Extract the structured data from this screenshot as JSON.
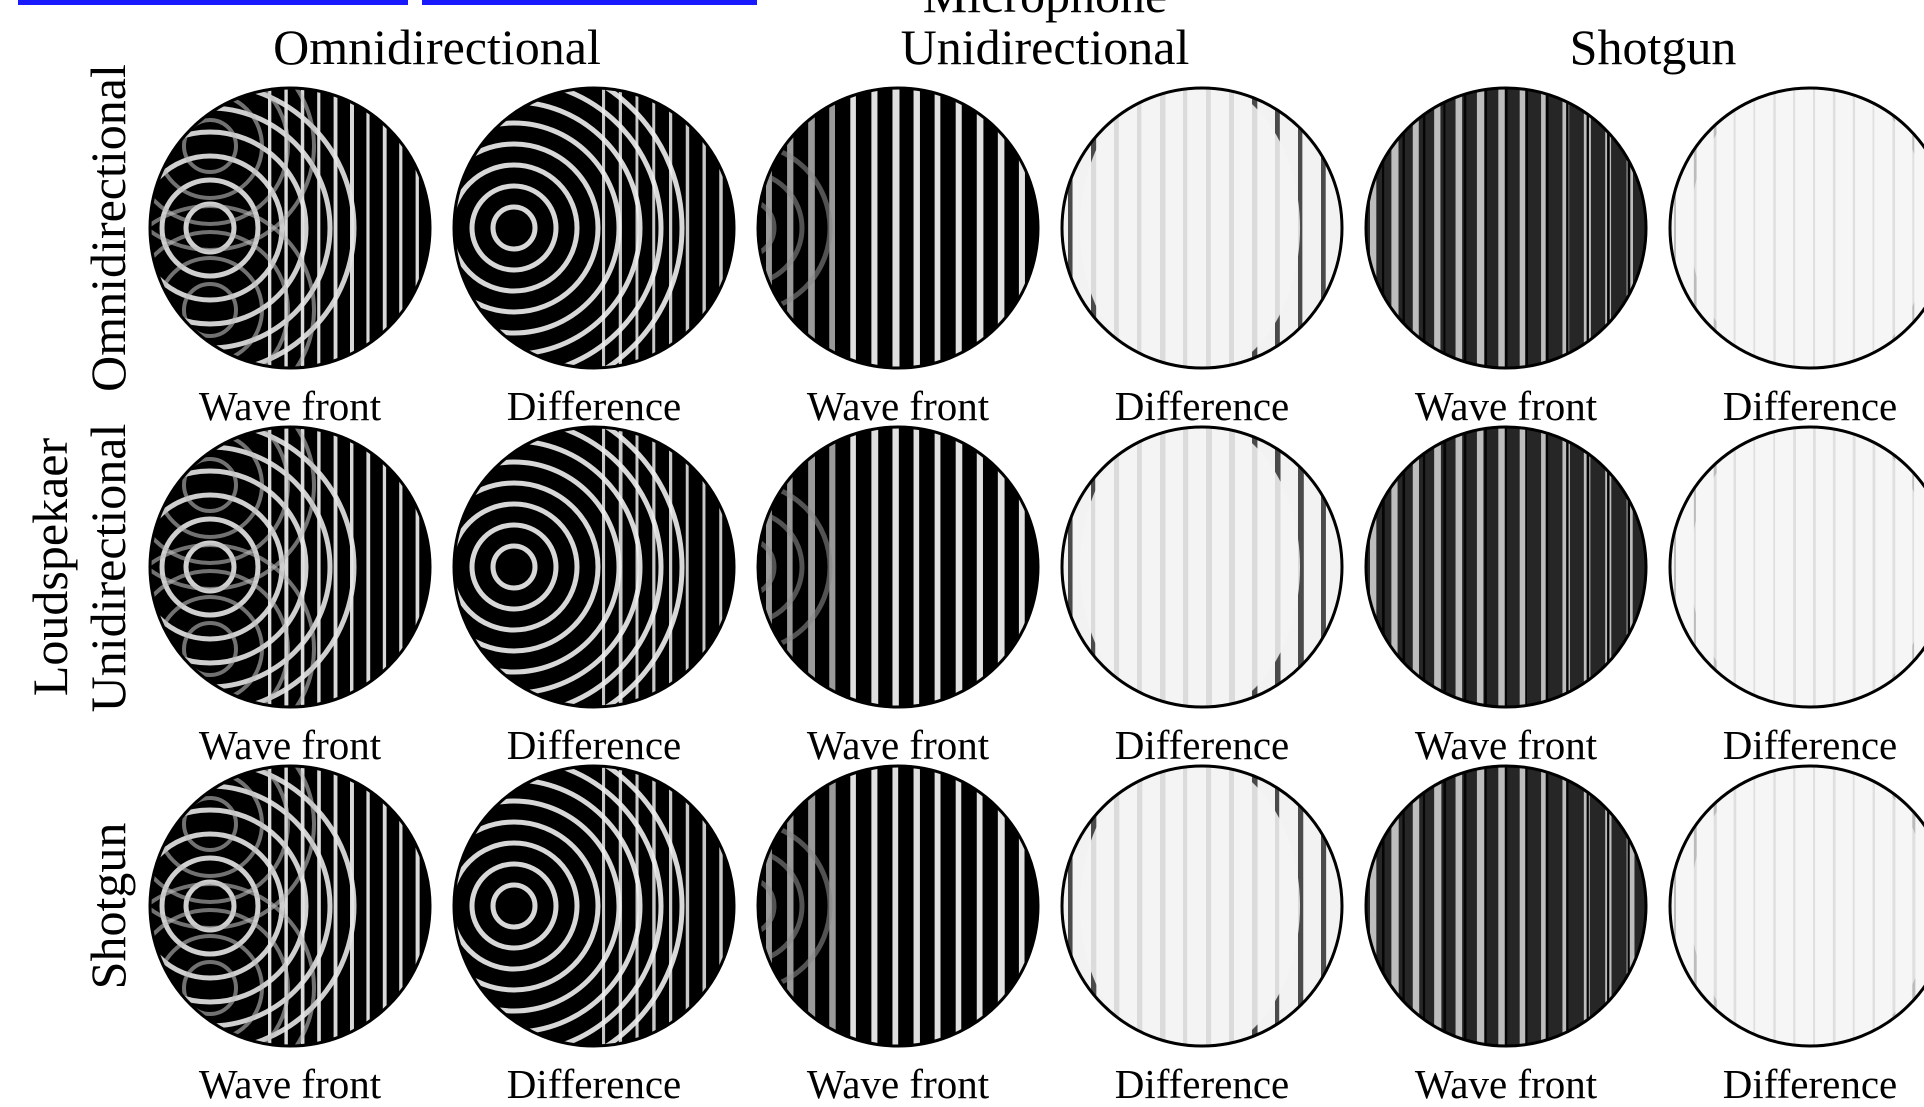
{
  "figure": {
    "microphone_header": "Microphone",
    "loudspeaker_header": "Loudspeaker",
    "loudspeaker_header_display": "Loudspekaer",
    "microphone_columns": [
      "Omnidirectional",
      "Unidirectional",
      "Shotgun"
    ],
    "loudspeaker_rows": [
      "Omnidirectional",
      "Unidirectional",
      "Shotgun"
    ],
    "panel_labels": [
      "Wave front",
      "Difference"
    ],
    "colors": {
      "background": "#ffffff",
      "ink": "#000000",
      "link": "#1a1aff"
    }
  }
}
